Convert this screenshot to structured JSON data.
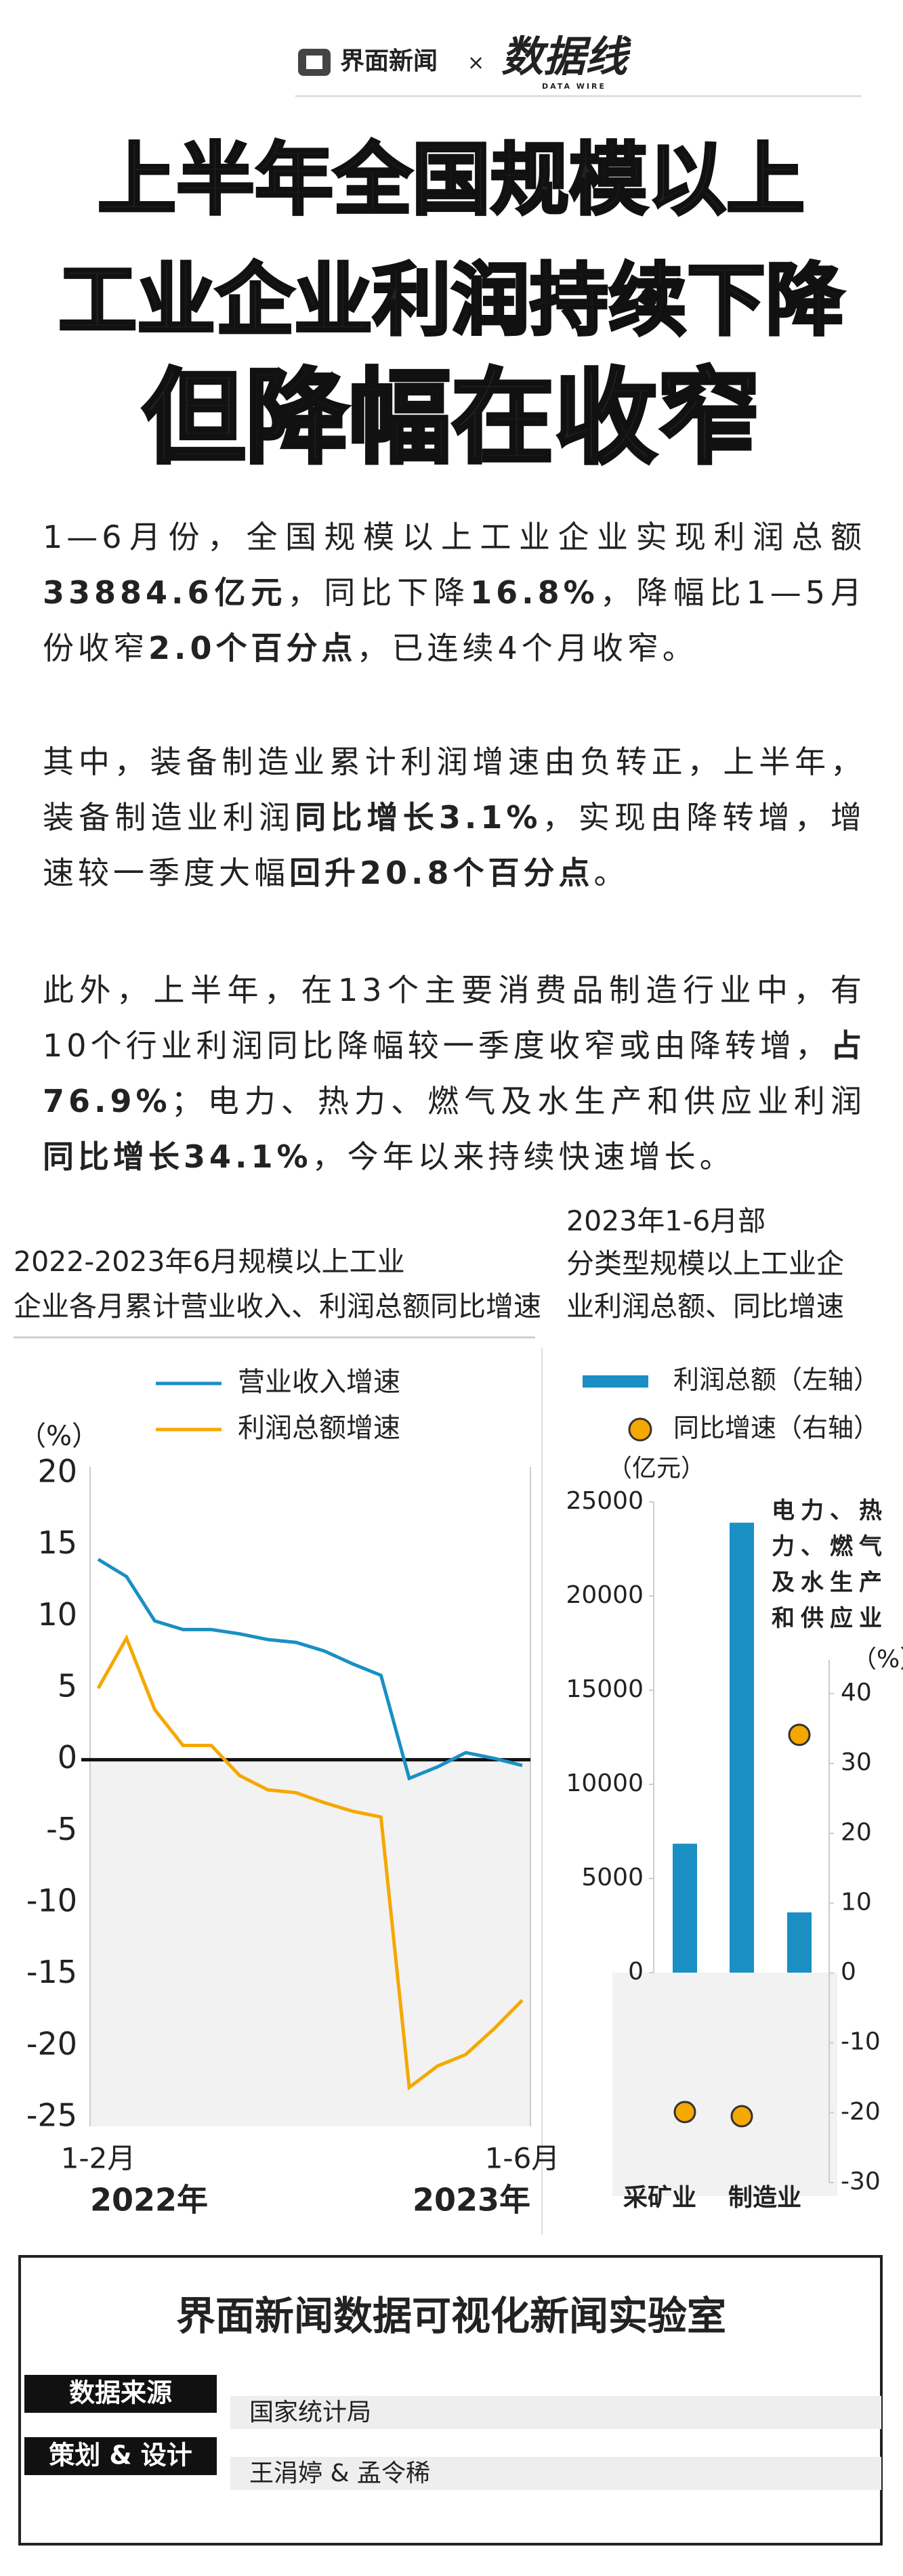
{
  "header": {
    "brand": "界面新闻",
    "separator": "×",
    "partner": "数据线",
    "partner_sub": "DATA WIRE"
  },
  "title": [
    "上半年全国规模以上",
    "工业企业利润持续下降",
    "但降幅在收窄"
  ],
  "paragraphs": [
    {
      "segments": [
        {
          "text": "1—6月份，全国规模以上工业企业实现利润总额"
        },
        {
          "text": "33884.6亿元",
          "bold": true
        },
        {
          "text": "，同比下降"
        },
        {
          "text": "16.8%",
          "bold": true
        },
        {
          "text": "，降幅比1—5月份收窄"
        },
        {
          "text": "2.0个百分点",
          "bold": true
        },
        {
          "text": "，已连续4个月收窄。"
        }
      ]
    },
    {
      "segments": [
        {
          "text": "其中，装备制造业累计利润增速由负转正，上半年，装备制造业利润"
        },
        {
          "text": "同比增长3.1%",
          "bold": true
        },
        {
          "text": "，实现由降转增，增速较一季度大幅"
        },
        {
          "text": "回升20.8个百分点",
          "bold": true
        },
        {
          "text": "。"
        }
      ]
    },
    {
      "segments": [
        {
          "text": "此外，上半年，在13个主要消费品制造行业中，有10个行业利润同比降幅较一季度收窄或由降转增，"
        },
        {
          "text": "占76.9%",
          "bold": true
        },
        {
          "text": "；电力、热力、燃气及水生产和供应业利润"
        },
        {
          "text": "同比增长34.1%",
          "bold": true
        },
        {
          "text": "，今年以来持续快速增长。"
        }
      ]
    }
  ],
  "chart_data": [
    {
      "type": "line",
      "title": "2022-2023年6月规模以上工业企业各月累计营业收入、利润总额同比增速",
      "y_unit": "（%）",
      "categories": [
        "1-2月",
        null,
        null,
        null,
        null,
        null,
        null,
        null,
        null,
        null,
        null,
        null,
        null,
        null,
        null,
        "1-6月"
      ],
      "x_groups": [
        "2022年",
        "2023年"
      ],
      "series": [
        {
          "name": "营业收入增速",
          "color": "#1a8fc4",
          "values": [
            14.0,
            12.8,
            9.7,
            9.1,
            9.1,
            8.8,
            8.4,
            8.2,
            7.6,
            6.7,
            5.9,
            -1.3,
            -0.5,
            0.5,
            0.1,
            -0.4
          ]
        },
        {
          "name": "利润总额增速",
          "color": "#f5a800",
          "values": [
            5.0,
            8.5,
            3.5,
            1.0,
            1.0,
            -1.1,
            -2.1,
            -2.3,
            -3.0,
            -3.6,
            -4.0,
            -22.9,
            -21.4,
            -20.6,
            -18.8,
            -16.8
          ]
        }
      ],
      "ylim": [
        -25,
        20
      ],
      "yticks": [
        20,
        15,
        10,
        5,
        0,
        -5,
        -10,
        -15,
        -20,
        -25
      ],
      "zero_line": true,
      "shade_negative": true
    },
    {
      "type": "combo",
      "title": "2023年1-6月部分类型规模以上工业企业利润总额、同比增速",
      "y_unit": "（亿元）",
      "y2_unit": "（%）",
      "categories": [
        "采矿业",
        "制造业",
        "电力、热力、燃气及水生产和供应业"
      ],
      "series": [
        {
          "name": "利润总额（左轴）",
          "type": "bar",
          "color": "#1a8fc4",
          "values": [
            6850,
            23900,
            3200
          ]
        },
        {
          "name": "同比增速（右轴）",
          "type": "scatter",
          "color": "#f5a800",
          "axis": "y2",
          "values": [
            -19.9,
            -20.5,
            34.1
          ]
        }
      ],
      "ylim": [
        0,
        25000
      ],
      "yticks": [
        0,
        5000,
        10000,
        15000,
        20000,
        25000
      ],
      "y2lim": [
        -30,
        40
      ],
      "y2ticks": [
        -30,
        -20,
        -10,
        0,
        10,
        20,
        30,
        40
      ],
      "shade_negative": true
    }
  ],
  "footer": {
    "title": "界面新闻数据可视化新闻实验室",
    "rows": [
      {
        "label": "数据来源",
        "value": "国家统计局"
      },
      {
        "label": "策划 & 设计",
        "value": "王涓婷 & 孟令稀"
      }
    ]
  }
}
